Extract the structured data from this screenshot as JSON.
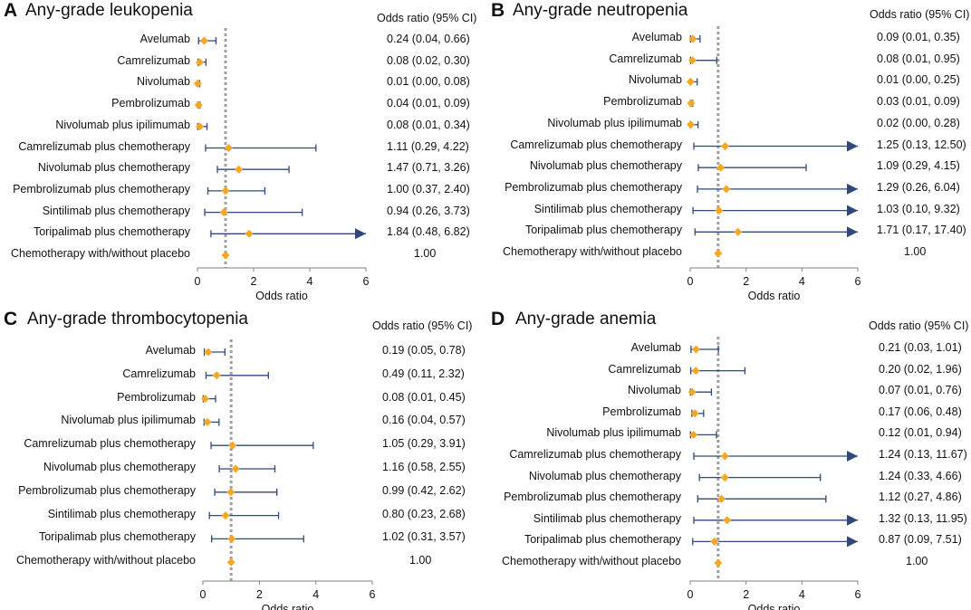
{
  "colors": {
    "ci": "#2f4a7a",
    "point": "#f5a623",
    "ref": "#a0a0a0",
    "axis": "#7f7f7f"
  },
  "chart_data": [
    {
      "type": "forest",
      "letter": "A",
      "title": "Any-grade leukopenia",
      "or_header": "Odds ratio (95% CI)",
      "xlabel": "Odds ratio",
      "xlim": [
        0,
        6
      ],
      "xticks": [
        0,
        2,
        4,
        6
      ],
      "reference": 1,
      "rows": [
        {
          "label": "Avelumab",
          "or": 0.24,
          "lo": 0.04,
          "hi": 0.66,
          "text": "0.24 (0.04, 0.66)"
        },
        {
          "label": "Camrelizumab",
          "or": 0.08,
          "lo": 0.02,
          "hi": 0.3,
          "text": "0.08 (0.02, 0.30)"
        },
        {
          "label": "Nivolumab",
          "or": 0.01,
          "lo": 0.0,
          "hi": 0.08,
          "text": "0.01 (0.00, 0.08)"
        },
        {
          "label": "Pembrolizumab",
          "or": 0.04,
          "lo": 0.01,
          "hi": 0.09,
          "text": "0.04 (0.01, 0.09)"
        },
        {
          "label": "Nivolumab plus ipilimumab",
          "or": 0.08,
          "lo": 0.01,
          "hi": 0.34,
          "text": "0.08 (0.01, 0.34)"
        },
        {
          "label": "Camrelizumab plus chemotherapy",
          "or": 1.11,
          "lo": 0.29,
          "hi": 4.22,
          "text": "1.11 (0.29, 4.22)"
        },
        {
          "label": "Nivolumab plus chemotherapy",
          "or": 1.47,
          "lo": 0.71,
          "hi": 3.26,
          "text": "1.47 (0.71, 3.26)"
        },
        {
          "label": "Pembrolizumab plus chemotherapy",
          "or": 1.0,
          "lo": 0.37,
          "hi": 2.4,
          "text": "1.00 (0.37, 2.40)"
        },
        {
          "label": "Sintilimab plus chemotherapy",
          "or": 0.94,
          "lo": 0.26,
          "hi": 3.73,
          "text": "0.94 (0.26, 3.73)"
        },
        {
          "label": "Toripalimab plus chemotherapy",
          "or": 1.84,
          "lo": 0.48,
          "hi": 6.82,
          "text": "1.84 (0.48, 6.82)"
        },
        {
          "label": "Chemotherapy with/without placebo",
          "or": 1.0,
          "lo": null,
          "hi": null,
          "text": "1.00"
        }
      ]
    },
    {
      "type": "forest",
      "letter": "B",
      "title": "Any-grade neutropenia",
      "or_header": "Odds ratio (95% CI)",
      "xlabel": "Odds ratio",
      "xlim": [
        0,
        6
      ],
      "xticks": [
        0,
        2,
        4,
        6
      ],
      "reference": 1,
      "rows": [
        {
          "label": "Avelumab",
          "or": 0.09,
          "lo": 0.01,
          "hi": 0.35,
          "text": "0.09 (0.01, 0.35)"
        },
        {
          "label": "Camrelizumab",
          "or": 0.08,
          "lo": 0.01,
          "hi": 0.95,
          "text": "0.08 (0.01, 0.95)"
        },
        {
          "label": "Nivolumab",
          "or": 0.01,
          "lo": 0.0,
          "hi": 0.25,
          "text": "0.01 (0.00, 0.25)"
        },
        {
          "label": "Pembrolizumab",
          "or": 0.03,
          "lo": 0.01,
          "hi": 0.09,
          "text": "0.03 (0.01, 0.09)"
        },
        {
          "label": "Nivolumab plus ipilimumab",
          "or": 0.02,
          "lo": 0.0,
          "hi": 0.28,
          "text": "0.02 (0.00, 0.28)"
        },
        {
          "label": "Camrelizumab plus chemotherapy",
          "or": 1.25,
          "lo": 0.13,
          "hi": 12.5,
          "text": "1.25 (0.13, 12.50)"
        },
        {
          "label": "Nivolumab plus chemotherapy",
          "or": 1.09,
          "lo": 0.29,
          "hi": 4.15,
          "text": "1.09 (0.29, 4.15)"
        },
        {
          "label": "Pembrolizumab plus chemotherapy",
          "or": 1.29,
          "lo": 0.26,
          "hi": 6.04,
          "text": "1.29 (0.26, 6.04)"
        },
        {
          "label": "Sintilimab plus chemotherapy",
          "or": 1.03,
          "lo": 0.1,
          "hi": 9.32,
          "text": "1.03 (0.10, 9.32)"
        },
        {
          "label": "Toripalimab plus chemotherapy",
          "or": 1.71,
          "lo": 0.17,
          "hi": 17.4,
          "text": "1.71 (0.17, 17.40)"
        },
        {
          "label": "Chemotherapy with/without placebo",
          "or": 1.0,
          "lo": null,
          "hi": null,
          "text": "1.00"
        }
      ]
    },
    {
      "type": "forest",
      "letter": "C",
      "title": "Any-grade thrombocytopenia",
      "or_header": "Odds ratio (95% CI)",
      "xlabel": "Odds ratio",
      "xlim": [
        0,
        6
      ],
      "xticks": [
        0,
        2,
        4,
        6
      ],
      "reference": 1,
      "rows": [
        {
          "label": "Avelumab",
          "or": 0.19,
          "lo": 0.05,
          "hi": 0.78,
          "text": "0.19 (0.05, 0.78)"
        },
        {
          "label": "Camrelizumab",
          "or": 0.49,
          "lo": 0.11,
          "hi": 2.32,
          "text": "0.49 (0.11, 2.32)"
        },
        {
          "label": "Pembrolizumab",
          "or": 0.08,
          "lo": 0.01,
          "hi": 0.45,
          "text": "0.08 (0.01, 0.45)"
        },
        {
          "label": "Nivolumab plus ipilimumab",
          "or": 0.16,
          "lo": 0.04,
          "hi": 0.57,
          "text": "0.16 (0.04, 0.57)"
        },
        {
          "label": "Camrelizumab plus chemotherapy",
          "or": 1.05,
          "lo": 0.29,
          "hi": 3.91,
          "text": "1.05 (0.29, 3.91)"
        },
        {
          "label": "Nivolumab plus chemotherapy",
          "or": 1.16,
          "lo": 0.58,
          "hi": 2.55,
          "text": "1.16 (0.58, 2.55)"
        },
        {
          "label": "Pembrolizumab plus chemotherapy",
          "or": 0.99,
          "lo": 0.42,
          "hi": 2.62,
          "text": "0.99 (0.42, 2.62)"
        },
        {
          "label": "Sintilimab plus chemotherapy",
          "or": 0.8,
          "lo": 0.23,
          "hi": 2.68,
          "text": "0.80 (0.23, 2.68)"
        },
        {
          "label": "Toripalimab plus chemotherapy",
          "or": 1.02,
          "lo": 0.31,
          "hi": 3.57,
          "text": "1.02 (0.31, 3.57)"
        },
        {
          "label": "Chemotherapy with/without placebo",
          "or": 1.0,
          "lo": null,
          "hi": null,
          "text": "1.00"
        }
      ]
    },
    {
      "type": "forest",
      "letter": "D",
      "title": "Any-grade anemia",
      "or_header": "Odds ratio (95% CI)",
      "xlabel": "Odds ratio",
      "xlim": [
        0,
        6
      ],
      "xticks": [
        0,
        2,
        4,
        6
      ],
      "reference": 1,
      "rows": [
        {
          "label": "Avelumab",
          "or": 0.21,
          "lo": 0.03,
          "hi": 1.01,
          "text": "0.21 (0.03, 1.01)"
        },
        {
          "label": "Camrelizumab",
          "or": 0.2,
          "lo": 0.02,
          "hi": 1.96,
          "text": "0.20 (0.02, 1.96)"
        },
        {
          "label": "Nivolumab",
          "or": 0.07,
          "lo": 0.01,
          "hi": 0.76,
          "text": "0.07 (0.01, 0.76)"
        },
        {
          "label": "Pembrolizumab",
          "or": 0.17,
          "lo": 0.06,
          "hi": 0.48,
          "text": "0.17 (0.06, 0.48)"
        },
        {
          "label": "Nivolumab plus ipilimumab",
          "or": 0.12,
          "lo": 0.01,
          "hi": 0.94,
          "text": "0.12 (0.01, 0.94)"
        },
        {
          "label": "Camrelizumab plus chemotherapy",
          "or": 1.24,
          "lo": 0.13,
          "hi": 11.67,
          "text": "1.24 (0.13, 11.67)"
        },
        {
          "label": "Nivolumab plus chemotherapy",
          "or": 1.24,
          "lo": 0.33,
          "hi": 4.66,
          "text": "1.24 (0.33, 4.66)"
        },
        {
          "label": "Pembrolizumab plus chemotherapy",
          "or": 1.12,
          "lo": 0.27,
          "hi": 4.86,
          "text": "1.12 (0.27, 4.86)"
        },
        {
          "label": "Sintilimab plus chemotherapy",
          "or": 1.32,
          "lo": 0.13,
          "hi": 11.95,
          "text": "1.32 (0.13, 11.95)"
        },
        {
          "label": "Toripalimab plus chemotherapy",
          "or": 0.87,
          "lo": 0.09,
          "hi": 7.51,
          "text": "0.87 (0.09, 7.51)"
        },
        {
          "label": "Chemotherapy with/without placebo",
          "or": 1.0,
          "lo": null,
          "hi": null,
          "text": "1.00"
        }
      ]
    }
  ]
}
